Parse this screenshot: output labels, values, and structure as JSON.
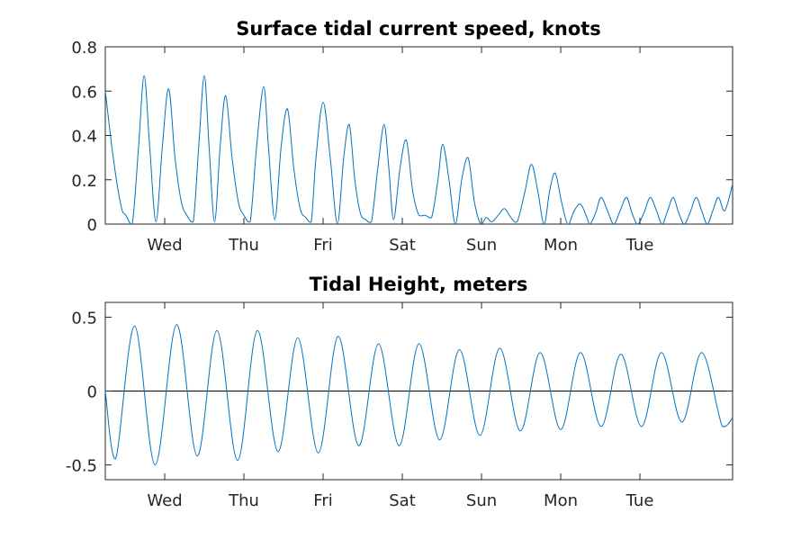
{
  "chart_data": [
    {
      "type": "line",
      "title": "Surface tidal current speed, knots",
      "xlabel": "",
      "ylabel": "",
      "xlim": [
        0,
        7.92
      ],
      "ylim": [
        0,
        0.8
      ],
      "x_ticks": [
        0.75,
        1.75,
        2.75,
        3.75,
        4.75,
        5.75,
        6.75
      ],
      "x_tick_labels": [
        "Wed",
        "Thu",
        "Fri",
        "Sat",
        "Sun",
        "Mon",
        "Tue"
      ],
      "y_ticks": [
        0,
        0.2,
        0.4,
        0.6,
        0.8
      ],
      "y_tick_labels": [
        "0",
        "0.2",
        "0.4",
        "0.6",
        "0.8"
      ],
      "grid": false,
      "series": [
        {
          "color": "#0072bd",
          "x": [
            0,
            0.1,
            0.2,
            0.26,
            0.34,
            0.42,
            0.49,
            0.56,
            0.64,
            0.72,
            0.8,
            0.88,
            0.96,
            1.03,
            1.11,
            1.18,
            1.25,
            1.31,
            1.38,
            1.45,
            1.52,
            1.6,
            1.68,
            1.75,
            1.83,
            1.91,
            2.0,
            2.06,
            2.14,
            2.22,
            2.3,
            2.38,
            2.46,
            2.53,
            2.6,
            2.66,
            2.75,
            2.84,
            2.93,
            3.01,
            3.08,
            3.15,
            3.22,
            3.29,
            3.36,
            3.44,
            3.52,
            3.58,
            3.64,
            3.72,
            3.8,
            3.88,
            3.96,
            4.04,
            4.12,
            4.2,
            4.26,
            4.34,
            4.42,
            4.5,
            4.58,
            4.66,
            4.74,
            4.81,
            4.88,
            4.96,
            5.04,
            5.12,
            5.2,
            5.3,
            5.38,
            5.46,
            5.54,
            5.61,
            5.68,
            5.76,
            5.84,
            5.92,
            6.0,
            6.08,
            6.12,
            6.19,
            6.26,
            6.34,
            6.42,
            6.5,
            6.58,
            6.65,
            6.72,
            6.8,
            6.88,
            6.96,
            7.03,
            7.1,
            7.17,
            7.24,
            7.31,
            7.38,
            7.46,
            7.53,
            7.6,
            7.67,
            7.74,
            7.82,
            7.92
          ],
          "y": [
            0.6,
            0.3,
            0.08,
            0.04,
            0.0,
            0.35,
            0.67,
            0.35,
            0.01,
            0.35,
            0.61,
            0.3,
            0.1,
            0.04,
            0.01,
            0.35,
            0.67,
            0.35,
            0.01,
            0.35,
            0.58,
            0.3,
            0.1,
            0.04,
            0.01,
            0.35,
            0.62,
            0.35,
            0.02,
            0.35,
            0.52,
            0.25,
            0.07,
            0.03,
            0.01,
            0.3,
            0.55,
            0.3,
            0.0,
            0.3,
            0.45,
            0.2,
            0.05,
            0.02,
            0.01,
            0.25,
            0.45,
            0.25,
            0.02,
            0.25,
            0.38,
            0.15,
            0.04,
            0.04,
            0.03,
            0.2,
            0.36,
            0.2,
            0.0,
            0.2,
            0.3,
            0.1,
            0.0,
            0.03,
            0.01,
            0.04,
            0.07,
            0.03,
            0.01,
            0.15,
            0.27,
            0.15,
            0.0,
            0.15,
            0.23,
            0.1,
            0.0,
            0.06,
            0.09,
            0.03,
            0.0,
            0.05,
            0.12,
            0.06,
            0.0,
            0.06,
            0.12,
            0.05,
            0.0,
            0.05,
            0.12,
            0.06,
            0.0,
            0.06,
            0.12,
            0.05,
            0.0,
            0.05,
            0.12,
            0.06,
            0.0,
            0.06,
            0.12,
            0.06,
            0.18
          ]
        }
      ]
    },
    {
      "type": "line",
      "title": "Tidal Height, meters",
      "xlabel": "",
      "ylabel": "",
      "xlim": [
        0,
        7.92
      ],
      "ylim": [
        -0.6,
        0.6
      ],
      "x_ticks": [
        0.75,
        1.75,
        2.75,
        3.75,
        4.75,
        5.75,
        6.75
      ],
      "x_tick_labels": [
        "Wed",
        "Thu",
        "Fri",
        "Sat",
        "Sun",
        "Mon",
        "Tue"
      ],
      "y_ticks": [
        -0.5,
        0,
        0.5
      ],
      "y_tick_labels": [
        "-0.5",
        "0",
        "0.5"
      ],
      "grid": false,
      "zero_line": true,
      "series": [
        {
          "color": "#0072bd",
          "x": [
            0,
            0.13,
            0.37,
            0.63,
            0.9,
            1.16,
            1.41,
            1.67,
            1.92,
            2.18,
            2.43,
            2.69,
            2.94,
            3.2,
            3.45,
            3.71,
            3.96,
            4.22,
            4.47,
            4.73,
            4.98,
            5.24,
            5.49,
            5.75,
            6.0,
            6.26,
            6.51,
            6.77,
            7.02,
            7.28,
            7.53,
            7.79,
            7.92
          ],
          "y": [
            0.0,
            -0.46,
            0.44,
            -0.5,
            0.45,
            -0.44,
            0.41,
            -0.47,
            0.41,
            -0.41,
            0.36,
            -0.42,
            0.37,
            -0.37,
            0.32,
            -0.37,
            0.32,
            -0.33,
            0.28,
            -0.3,
            0.29,
            -0.27,
            0.26,
            -0.26,
            0.26,
            -0.24,
            0.25,
            -0.24,
            0.26,
            -0.21,
            0.26,
            -0.24,
            -0.18
          ]
        }
      ]
    }
  ]
}
